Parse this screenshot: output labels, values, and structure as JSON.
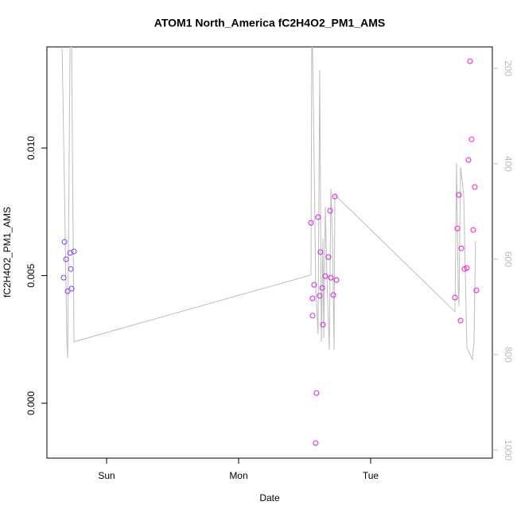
{
  "chart_data": {
    "type": "scatter",
    "title": "ATOM1 North_America fC2H4O2_PM1_AMS",
    "x_label": "Date",
    "y_label": "fC2H4O2_PM1_AMS",
    "xlim": [
      -0.452,
      2.922
    ],
    "xticks": [
      {
        "value": 0,
        "label": "Sun"
      },
      {
        "value": 1,
        "label": "Mon"
      },
      {
        "value": 2,
        "label": "Tue"
      }
    ],
    "ylim": [
      -0.00215,
      0.01396
    ],
    "yticks": [
      {
        "value": 0,
        "label": "0.000"
      },
      {
        "value": 0.005,
        "label": "0.005"
      },
      {
        "value": 0.01,
        "label": "0.010"
      }
    ],
    "y2lim": [
      1017,
      155
    ],
    "y2ticks": [
      200,
      400,
      600,
      800,
      1000
    ],
    "series": [
      {
        "color": "#7f3cff",
        "x": [
          -0.325,
          -0.319,
          -0.307,
          -0.295,
          -0.277,
          -0.271,
          -0.265,
          -0.247
        ],
        "values": [
          0.00492,
          0.00632,
          0.00564,
          0.00439,
          0.00589,
          0.00526,
          0.00449,
          0.00595
        ]
      },
      {
        "color": "#d21fe6",
        "x": [
          1.548,
          1.56,
          1.56,
          1.572,
          1.59,
          1.584,
          1.602,
          1.614,
          1.62,
          1.633,
          1.639,
          1.657,
          1.681,
          1.693,
          1.699,
          1.717,
          1.729,
          1.741
        ],
        "values": [
          0.00707,
          0.00411,
          0.00343,
          0.00464,
          0.0004,
          -0.00156,
          0.00729,
          0.00421,
          0.00592,
          0.00452,
          0.00308,
          0.00498,
          0.00573,
          0.00754,
          0.00492,
          0.00424,
          0.0081,
          0.00483
        ]
      },
      {
        "color": "#f01ccc",
        "x": [
          2.639,
          2.657,
          2.669,
          2.681,
          2.687,
          2.711,
          2.729,
          2.741,
          2.753,
          2.765,
          2.777,
          2.789,
          2.801
        ],
        "values": [
          0.00414,
          0.00685,
          0.00816,
          0.00324,
          0.00607,
          0.00526,
          0.0053,
          0.00953,
          0.0134,
          0.01034,
          0.00679,
          0.00847,
          0.00442
        ]
      },
      {
        "type": "line",
        "axis": "y2",
        "color": "#bdbdbd",
        "x": [
          -0.337,
          -0.313,
          -0.301,
          -0.295,
          -0.277,
          -0.265,
          -0.247,
          1.548,
          1.554,
          1.56,
          1.572,
          1.584,
          1.602,
          1.614,
          1.627,
          1.639,
          1.645,
          1.657,
          1.669,
          1.687,
          1.699,
          1.711,
          1.723,
          1.729,
          2.639,
          2.651,
          2.663,
          2.669,
          2.681,
          2.705,
          2.729,
          2.771,
          2.783,
          2.795
        ],
        "values": [
          155,
          557,
          773,
          807,
          155,
          155,
          773,
          633,
          155,
          155,
          390,
          657,
          757,
          203,
          773,
          557,
          765,
          490,
          640,
          790,
          452,
          557,
          790,
          465,
          710,
          398,
          657,
          698,
          407,
          465,
          785,
          810,
          773,
          562
        ]
      }
    ]
  }
}
